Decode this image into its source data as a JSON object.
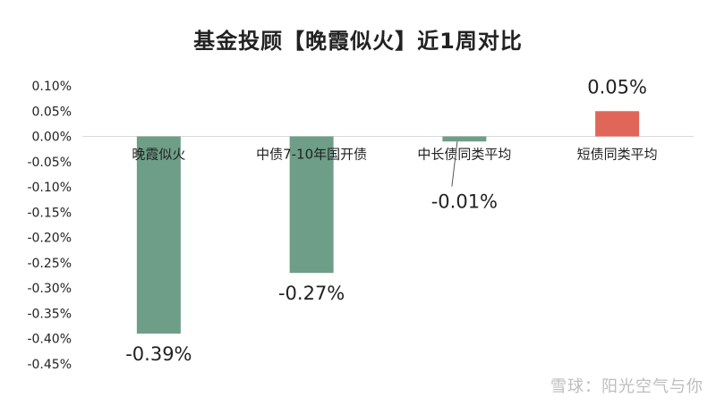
{
  "chart_data": {
    "type": "bar",
    "title": "基金投顾【晚霞似火】近1周对比",
    "categories": [
      "晚霞似火",
      "中债7-10年国开债",
      "中长债同类平均",
      "短债同类平均"
    ],
    "values": [
      -0.39,
      -0.27,
      -0.01,
      0.05
    ],
    "data_labels": [
      "-0.39%",
      "-0.27%",
      "-0.01%",
      "0.05%"
    ],
    "ylim": [
      -0.45,
      0.1
    ],
    "yticks": [
      0.1,
      0.05,
      0.0,
      -0.05,
      -0.1,
      -0.15,
      -0.2,
      -0.25,
      -0.3,
      -0.35,
      -0.4,
      -0.45
    ],
    "ytick_labels": [
      "0.10%",
      "0.05%",
      "0.00%",
      "-0.05%",
      "-0.10%",
      "-0.15%",
      "-0.20%",
      "-0.25%",
      "-0.30%",
      "-0.35%",
      "-0.40%",
      "-0.45%"
    ],
    "grid": false,
    "colors": {
      "negative": "#6e9e87",
      "positive": "#e0665a",
      "axis": "#d9d9d9"
    }
  },
  "watermark": "雪球：阳光空气与你"
}
